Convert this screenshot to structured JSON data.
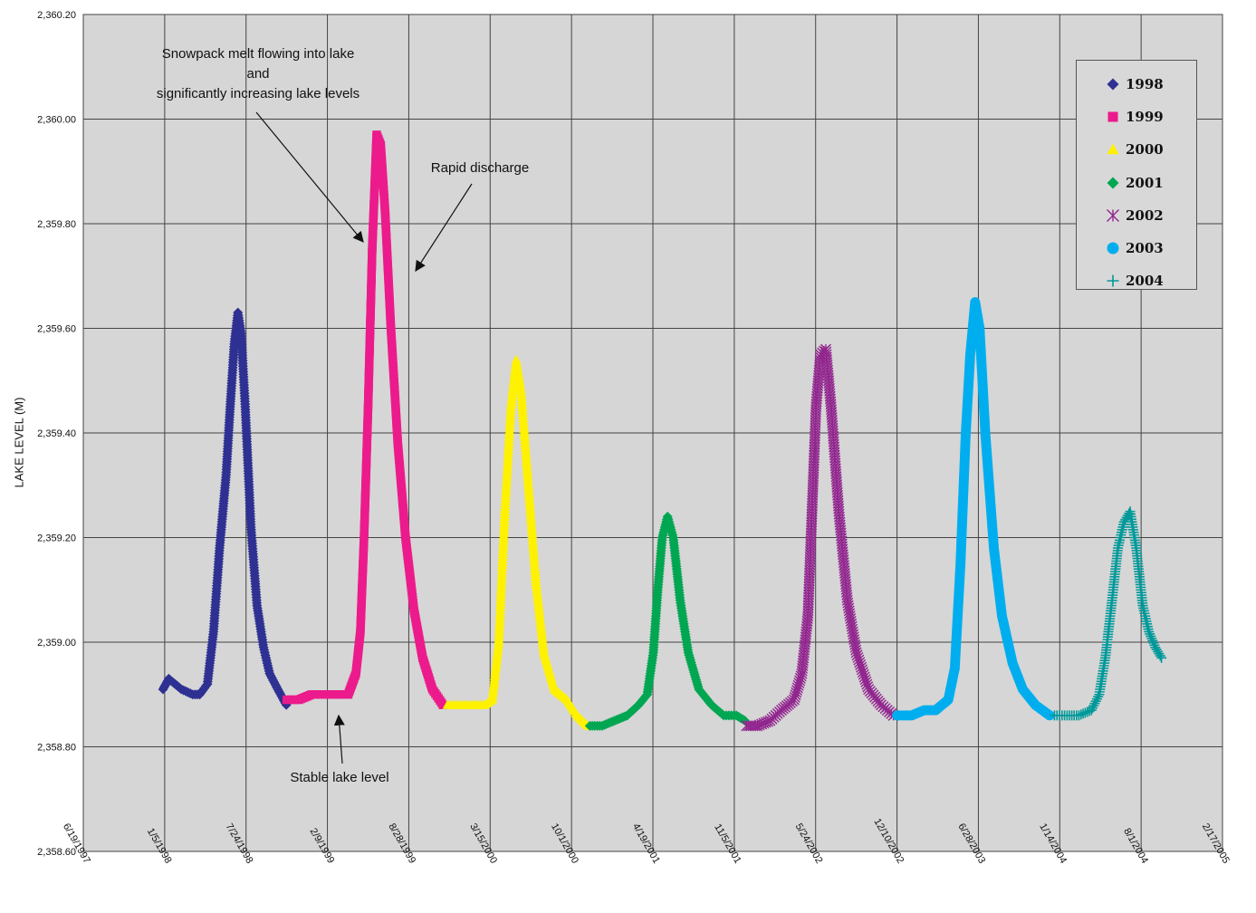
{
  "chart_data": {
    "type": "scatter",
    "title": "",
    "xlabel": "",
    "ylabel": "LAKE  LEVEL (M)",
    "x_ticks": [
      "6/19/1997",
      "1/5/1998",
      "7/24/1998",
      "2/9/1999",
      "8/28/1999",
      "3/15/2000",
      "10/1/2000",
      "4/19/2001",
      "11/5/2001",
      "5/24/2002",
      "12/10/2002",
      "6/28/2003",
      "1/14/2004",
      "8/1/2004",
      "2/17/2005"
    ],
    "y_ticks": [
      "2,358.60",
      "2,358.80",
      "2,359.00",
      "2,359.20",
      "2,359.40",
      "2,359.60",
      "2,359.80",
      "2,360.00",
      "2,360.20"
    ],
    "ylim": [
      2358.6,
      2360.2
    ],
    "xlim": [
      "1997-06-19",
      "2005-02-17"
    ],
    "grid": true,
    "legend_position": "top-right",
    "series": [
      {
        "name": "1998",
        "color": "#2e3192",
        "marker": "diamond",
        "points": [
          [
            "1998-01-01",
            2358.91
          ],
          [
            "1998-01-15",
            2358.93
          ],
          [
            "1998-02-15",
            2358.91
          ],
          [
            "1998-03-15",
            2358.9
          ],
          [
            "1998-04-01",
            2358.9
          ],
          [
            "1998-04-20",
            2358.92
          ],
          [
            "1998-05-05",
            2359.02
          ],
          [
            "1998-05-20",
            2359.18
          ],
          [
            "1998-06-05",
            2359.32
          ],
          [
            "1998-06-15",
            2359.45
          ],
          [
            "1998-06-25",
            2359.57
          ],
          [
            "1998-07-04",
            2359.63
          ],
          [
            "1998-07-12",
            2359.59
          ],
          [
            "1998-07-22",
            2359.45
          ],
          [
            "1998-08-05",
            2359.22
          ],
          [
            "1998-08-20",
            2359.07
          ],
          [
            "1998-09-05",
            2358.99
          ],
          [
            "1998-09-20",
            2358.94
          ],
          [
            "1998-10-10",
            2358.91
          ],
          [
            "1998-10-31",
            2358.88
          ]
        ]
      },
      {
        "name": "1999",
        "color": "#ec1b8c",
        "marker": "square",
        "points": [
          [
            "1998-11-01",
            2358.89
          ],
          [
            "1998-12-01",
            2358.89
          ],
          [
            "1999-01-01",
            2358.9
          ],
          [
            "1999-02-01",
            2358.9
          ],
          [
            "1999-03-01",
            2358.9
          ],
          [
            "1999-04-01",
            2358.9
          ],
          [
            "1999-04-20",
            2358.94
          ],
          [
            "1999-05-01",
            2359.02
          ],
          [
            "1999-05-10",
            2359.2
          ],
          [
            "1999-05-20",
            2359.45
          ],
          [
            "1999-05-30",
            2359.75
          ],
          [
            "1999-06-10",
            2359.97
          ],
          [
            "1999-06-20",
            2359.95
          ],
          [
            "1999-07-01",
            2359.82
          ],
          [
            "1999-07-15",
            2359.6
          ],
          [
            "1999-08-01",
            2359.38
          ],
          [
            "1999-08-20",
            2359.2
          ],
          [
            "1999-09-10",
            2359.06
          ],
          [
            "1999-10-01",
            2358.97
          ],
          [
            "1999-10-25",
            2358.91
          ],
          [
            "1999-11-20",
            2358.88
          ]
        ]
      },
      {
        "name": "2000",
        "color": "#fff200",
        "marker": "triangle",
        "points": [
          [
            "1999-12-01",
            2358.88
          ],
          [
            "2000-01-01",
            2358.88
          ],
          [
            "2000-02-01",
            2358.88
          ],
          [
            "2000-03-01",
            2358.88
          ],
          [
            "2000-03-20",
            2358.89
          ],
          [
            "2000-04-05",
            2359.0
          ],
          [
            "2000-04-20",
            2359.25
          ],
          [
            "2000-05-05",
            2359.45
          ],
          [
            "2000-05-18",
            2359.54
          ],
          [
            "2000-05-30",
            2359.48
          ],
          [
            "2000-06-15",
            2359.32
          ],
          [
            "2000-07-05",
            2359.12
          ],
          [
            "2000-07-25",
            2358.98
          ],
          [
            "2000-08-20",
            2358.91
          ],
          [
            "2000-09-20",
            2358.89
          ],
          [
            "2000-10-15",
            2358.86
          ],
          [
            "2000-11-10",
            2358.84
          ]
        ]
      },
      {
        "name": "2001",
        "color": "#00a651",
        "marker": "diamond",
        "points": [
          [
            "2000-11-15",
            2358.84
          ],
          [
            "2000-12-15",
            2358.84
          ],
          [
            "2001-01-15",
            2358.85
          ],
          [
            "2001-02-15",
            2358.86
          ],
          [
            "2001-03-15",
            2358.88
          ],
          [
            "2001-04-05",
            2358.9
          ],
          [
            "2001-04-20",
            2358.98
          ],
          [
            "2001-05-01",
            2359.1
          ],
          [
            "2001-05-12",
            2359.2
          ],
          [
            "2001-05-25",
            2359.24
          ],
          [
            "2001-06-08",
            2359.2
          ],
          [
            "2001-06-25",
            2359.08
          ],
          [
            "2001-07-15",
            2358.98
          ],
          [
            "2001-08-10",
            2358.91
          ],
          [
            "2001-09-10",
            2358.88
          ],
          [
            "2001-10-10",
            2358.86
          ],
          [
            "2001-11-10",
            2358.86
          ],
          [
            "2001-12-01",
            2358.85
          ]
        ]
      },
      {
        "name": "2002",
        "color": "#92278f",
        "marker": "asterisk",
        "points": [
          [
            "2001-12-05",
            2358.84
          ],
          [
            "2002-01-01",
            2358.84
          ],
          [
            "2002-02-01",
            2358.85
          ],
          [
            "2002-03-01",
            2358.87
          ],
          [
            "2002-04-01",
            2358.89
          ],
          [
            "2002-04-20",
            2358.94
          ],
          [
            "2002-05-05",
            2359.05
          ],
          [
            "2002-05-15",
            2359.25
          ],
          [
            "2002-05-25",
            2359.45
          ],
          [
            "2002-06-05",
            2359.55
          ],
          [
            "2002-06-18",
            2359.56
          ],
          [
            "2002-07-01",
            2359.45
          ],
          [
            "2002-07-20",
            2359.25
          ],
          [
            "2002-08-10",
            2359.08
          ],
          [
            "2002-09-01",
            2358.98
          ],
          [
            "2002-10-01",
            2358.91
          ],
          [
            "2002-11-01",
            2358.88
          ],
          [
            "2002-12-01",
            2358.86
          ]
        ]
      },
      {
        "name": "2003",
        "color": "#00aeef",
        "marker": "circle",
        "points": [
          [
            "2002-12-10",
            2358.86
          ],
          [
            "2003-01-15",
            2358.86
          ],
          [
            "2003-02-15",
            2358.87
          ],
          [
            "2003-03-15",
            2358.87
          ],
          [
            "2003-04-15",
            2358.89
          ],
          [
            "2003-05-01",
            2358.95
          ],
          [
            "2003-05-15",
            2359.15
          ],
          [
            "2003-05-28",
            2359.4
          ],
          [
            "2003-06-08",
            2359.55
          ],
          [
            "2003-06-20",
            2359.65
          ],
          [
            "2003-07-01",
            2359.6
          ],
          [
            "2003-07-15",
            2359.4
          ],
          [
            "2003-08-05",
            2359.18
          ],
          [
            "2003-08-25",
            2359.05
          ],
          [
            "2003-09-20",
            2358.96
          ],
          [
            "2003-10-15",
            2358.91
          ],
          [
            "2003-11-15",
            2358.88
          ],
          [
            "2003-12-20",
            2358.86
          ]
        ]
      },
      {
        "name": "2004",
        "color": "#00999a",
        "marker": "plus",
        "points": [
          [
            "2004-01-01",
            2358.86
          ],
          [
            "2004-02-01",
            2358.86
          ],
          [
            "2004-03-01",
            2358.86
          ],
          [
            "2004-04-01",
            2358.87
          ],
          [
            "2004-04-20",
            2358.9
          ],
          [
            "2004-05-05",
            2358.97
          ],
          [
            "2004-05-20",
            2359.07
          ],
          [
            "2004-06-05",
            2359.18
          ],
          [
            "2004-06-20",
            2359.23
          ],
          [
            "2004-07-05",
            2359.25
          ],
          [
            "2004-07-20",
            2359.18
          ],
          [
            "2004-08-05",
            2359.07
          ],
          [
            "2004-08-20",
            2359.02
          ],
          [
            "2004-09-05",
            2358.99
          ],
          [
            "2004-09-20",
            2358.97
          ]
        ]
      }
    ],
    "annotations": [
      {
        "text": "Snowpack melt flowing into lake\nand\nsignificantly increasing lake levels"
      },
      {
        "text": "Rapid discharge"
      },
      {
        "text": "Stable lake level"
      }
    ]
  }
}
